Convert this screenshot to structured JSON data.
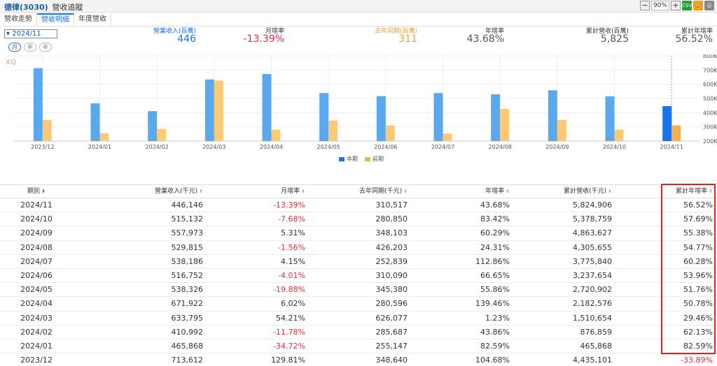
{
  "header": {
    "title": "德律(3030)",
    "subtitle": "營收追蹤",
    "zoom": "90%",
    "csv_label": "CSV"
  },
  "tabs": [
    {
      "label": "營收走勢"
    },
    {
      "label": "營收明細"
    },
    {
      "label": "年度營收"
    }
  ],
  "period": {
    "selected": "2024/11",
    "buttons": [
      "月",
      "季",
      "年"
    ]
  },
  "summary": [
    {
      "label": "營業收入(百萬)",
      "value": "446"
    },
    {
      "label": "月增率",
      "value": "-13.39%"
    },
    {
      "label": "去年同期(百萬)",
      "value": "311"
    },
    {
      "label": "年增率",
      "value": "43.68%"
    },
    {
      "label": "累計營收(百萬)",
      "value": "5,825"
    },
    {
      "label": "累計年增率",
      "value": "56.52%"
    }
  ],
  "chart_data": {
    "type": "bar",
    "watermark": "XQ",
    "categories": [
      "2023/12",
      "2024/01",
      "2024/02",
      "2024/03",
      "2024/04",
      "2024/05",
      "2024/06",
      "2024/07",
      "2024/08",
      "2024/09",
      "2024/10",
      "2024/11"
    ],
    "series": [
      {
        "name": "本期",
        "values": [
          713.6,
          465.9,
          411.0,
          633.8,
          671.9,
          538.3,
          516.8,
          538.2,
          529.8,
          558.0,
          515.1,
          446.1
        ],
        "color": "#5aa9ef"
      },
      {
        "name": "前期",
        "values": [
          348.6,
          255.1,
          285.7,
          626.1,
          280.6,
          345.4,
          310.1,
          252.8,
          426.2,
          348.1,
          280.9,
          310.5
        ],
        "color": "#fcc977"
      }
    ],
    "highlight_color": "#1a73e8",
    "highlight_prev_color": "#f4b04a",
    "y_ticks": [
      "200K",
      "300K",
      "400K",
      "500K",
      "600K",
      "700K",
      "800K"
    ],
    "ylim": [
      200,
      800
    ],
    "grid": true,
    "legend": "bottom-center"
  },
  "table": {
    "columns": [
      "期別",
      "營業收入(千元)",
      "月增率",
      "去年同期(千元)",
      "年增率",
      "累計營收(千元)",
      "累計年增率"
    ],
    "rows": [
      [
        "2024/11",
        "446,146",
        "-13.39%",
        "310,517",
        "43.68%",
        "5,824,906",
        "56.52%"
      ],
      [
        "2024/10",
        "515,132",
        "-7.68%",
        "280,850",
        "83.42%",
        "5,378,759",
        "57.69%"
      ],
      [
        "2024/09",
        "557,973",
        "5.31%",
        "348,103",
        "60.29%",
        "4,863,627",
        "55.38%"
      ],
      [
        "2024/08",
        "529,815",
        "-1.56%",
        "426,203",
        "24.31%",
        "4,305,655",
        "54.77%"
      ],
      [
        "2024/07",
        "538,186",
        "4.15%",
        "252,839",
        "112.86%",
        "3,775,840",
        "60.28%"
      ],
      [
        "2024/06",
        "516,752",
        "-4.01%",
        "310,090",
        "66.65%",
        "3,237,654",
        "53.96%"
      ],
      [
        "2024/05",
        "538,326",
        "-19.88%",
        "345,380",
        "55.86%",
        "2,720,902",
        "51.76%"
      ],
      [
        "2024/04",
        "671,922",
        "6.02%",
        "280,596",
        "139.46%",
        "2,182,576",
        "50.78%"
      ],
      [
        "2024/03",
        "633,795",
        "54.21%",
        "626,077",
        "1.23%",
        "1,510,654",
        "29.46%"
      ],
      [
        "2024/02",
        "410,992",
        "-11.78%",
        "285,687",
        "43.86%",
        "876,859",
        "62.13%"
      ],
      [
        "2024/01",
        "465,868",
        "-34.72%",
        "255,147",
        "82.59%",
        "465,868",
        "82.59%"
      ],
      [
        "2023/12",
        "713,612",
        "129.81%",
        "348,640",
        "104.68%",
        "4,435,101",
        "-33.89%"
      ]
    ]
  },
  "colors": {
    "accent": "#1a73e8",
    "negative": "#e0303b",
    "highlight_border": "#e02020"
  }
}
